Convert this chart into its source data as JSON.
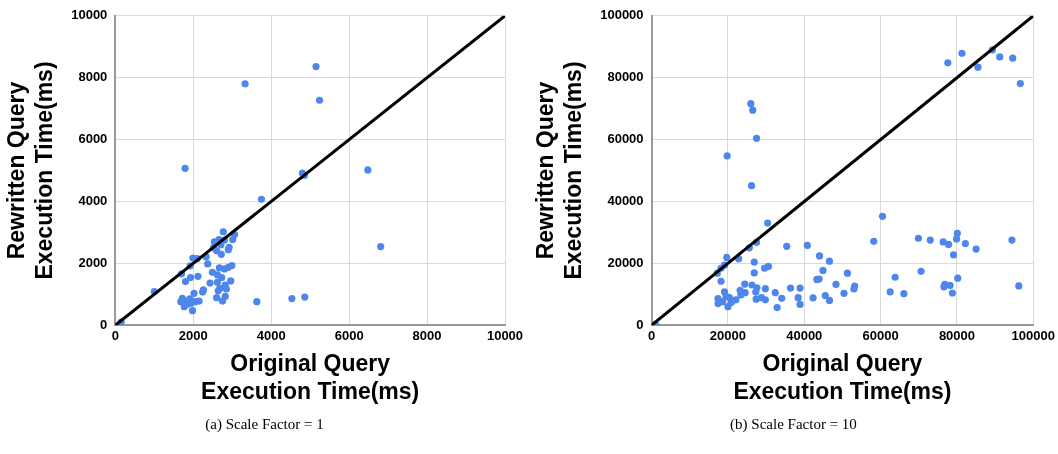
{
  "chart_data": [
    {
      "type": "scatter",
      "xlabel": "Original Query\nExecution Time(ms)",
      "ylabel": "Rewritten Query\nExecution Time(ms)",
      "annotations": [
        "(a) Scale Factor = 1"
      ],
      "xlim": [
        0,
        10000
      ],
      "ylim": [
        0,
        10000
      ],
      "xticks": [
        0,
        2000,
        4000,
        6000,
        8000,
        10000
      ],
      "yticks": [
        0,
        2000,
        4000,
        6000,
        8000,
        10000
      ],
      "grid": true,
      "legend": false,
      "series": [
        {
          "marker": "circle",
          "color": "#4f86ec",
          "x": [
            150,
            1000,
            1790,
            3330,
            5150,
            5240,
            3750,
            4800,
            4850,
            6480,
            6810,
            3630,
            4530,
            4860,
            2770,
            3060,
            3010,
            2540,
            2660,
            2800,
            2710,
            2520,
            2600,
            2920,
            2900,
            2720,
            1990,
            2100,
            2330,
            1920,
            2370,
            1700,
            1800,
            1930,
            2120,
            2490,
            2670,
            2800,
            2990,
            2900,
            2620,
            2730,
            2960,
            2430,
            2620,
            2820,
            2680,
            2850,
            2260,
            2640,
            2240,
            2020,
            2600,
            2820,
            2750,
            1720,
            1800,
            1910,
            2150,
            1680,
            1770,
            1980,
            2050,
            1940,
            1840
          ],
          "values": [
            100,
            1090,
            5070,
            7800,
            8360,
            7270,
            4070,
            4920,
            4840,
            5020,
            2540,
            760,
            860,
            910,
            3020,
            2930,
            2770,
            2690,
            2770,
            2750,
            2600,
            2500,
            2410,
            2520,
            2440,
            2290,
            2170,
            2150,
            2210,
            1920,
            1980,
            1660,
            1410,
            1540,
            1580,
            1710,
            1850,
            1820,
            1930,
            1870,
            1630,
            1540,
            1430,
            1360,
            1390,
            1300,
            1190,
            1170,
            1140,
            1110,
            1070,
            1030,
            890,
            930,
            780,
            870,
            760,
            850,
            780,
            760,
            600,
            470,
            760,
            710,
            670
          ]
        },
        {
          "type": "line",
          "marker": "none",
          "color": "#000000",
          "x": [
            0,
            10000
          ],
          "values": [
            0,
            10000
          ]
        }
      ]
    },
    {
      "type": "scatter",
      "xlabel": "Original Query\nExecution Time(ms)",
      "ylabel": "Rewritten Query\nExecution Time(ms)",
      "annotations": [
        "(b) Scale Factor = 10"
      ],
      "xlim": [
        0,
        100000
      ],
      "ylim": [
        0,
        100000
      ],
      "xticks": [
        0,
        20000,
        40000,
        60000,
        80000,
        100000
      ],
      "yticks": [
        0,
        20000,
        40000,
        60000,
        80000,
        100000
      ],
      "grid": true,
      "legend": false,
      "series": [
        {
          "marker": "circle",
          "color": "#4f86ec",
          "x": [
            1000,
            77600,
            81300,
            89300,
            91200,
            94600,
            85500,
            96600,
            26000,
            26500,
            27500,
            19800,
            26200,
            30400,
            60500,
            27500,
            25600,
            35400,
            40800,
            58200,
            69900,
            73000,
            76400,
            77800,
            79900,
            80100,
            82200,
            85000,
            94400,
            79100,
            70600,
            80200,
            63800,
            62500,
            66100,
            76600,
            76800,
            78200,
            78800,
            96200,
            44000,
            46600,
            44900,
            43300,
            43900,
            51300,
            48300,
            53200,
            53000,
            50400,
            45500,
            46600,
            42300,
            38900,
            36400,
            38400,
            38900,
            34100,
            32400,
            32900,
            29800,
            29800,
            30600,
            29600,
            26900,
            26900,
            19700,
            22800,
            17200,
            18200,
            19100,
            18200,
            24400,
            26300,
            27600,
            23200,
            24500,
            27300,
            27400,
            28800,
            19100,
            17400,
            17400,
            19500,
            20400,
            20900,
            20000,
            22100,
            18600,
            23400
          ],
          "values": [
            300,
            84800,
            87900,
            89000,
            86700,
            86300,
            83400,
            78100,
            71600,
            69500,
            60400,
            54700,
            45100,
            33000,
            35200,
            26800,
            25000,
            25500,
            25800,
            27100,
            28100,
            27500,
            26900,
            26100,
            27900,
            29700,
            26400,
            24600,
            27500,
            22700,
            17400,
            15200,
            15500,
            10800,
            10200,
            12400,
            13200,
            12900,
            10400,
            12700,
            22400,
            20700,
            17700,
            14800,
            14900,
            16800,
            13200,
            12600,
            11700,
            10300,
            9600,
            8000,
            8800,
            12000,
            12000,
            8900,
            6700,
            8700,
            10500,
            5700,
            11800,
            8200,
            19000,
            18400,
            20400,
            16900,
            21900,
            21500,
            16800,
            18400,
            19400,
            14200,
            13300,
            13000,
            12100,
            11300,
            10500,
            10700,
            8400,
            8900,
            10800,
            8600,
            7000,
            9400,
            8900,
            7400,
            6000,
            8200,
            7600,
            9800
          ]
        },
        {
          "type": "line",
          "marker": "none",
          "color": "#000000",
          "x": [
            0,
            100000
          ],
          "values": [
            0,
            100000
          ]
        }
      ]
    }
  ]
}
